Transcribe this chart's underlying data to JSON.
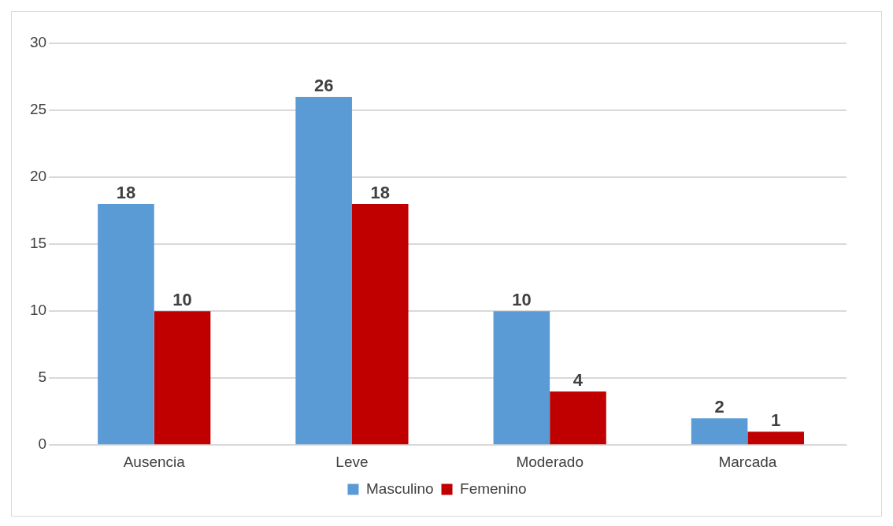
{
  "chart_data": {
    "type": "bar",
    "categories": [
      "Ausencia",
      "Leve",
      "Moderado",
      "Marcada"
    ],
    "series": [
      {
        "name": "Masculino",
        "color": "#5b9bd5",
        "values": [
          18,
          26,
          10,
          2
        ]
      },
      {
        "name": "Femenino",
        "color": "#c00000",
        "values": [
          10,
          18,
          4,
          1
        ]
      }
    ],
    "ylim": [
      0,
      30
    ],
    "yticks": [
      0,
      5,
      10,
      15,
      20,
      25,
      30
    ],
    "grid": "y",
    "legend": "bottom",
    "data_labels": true
  }
}
